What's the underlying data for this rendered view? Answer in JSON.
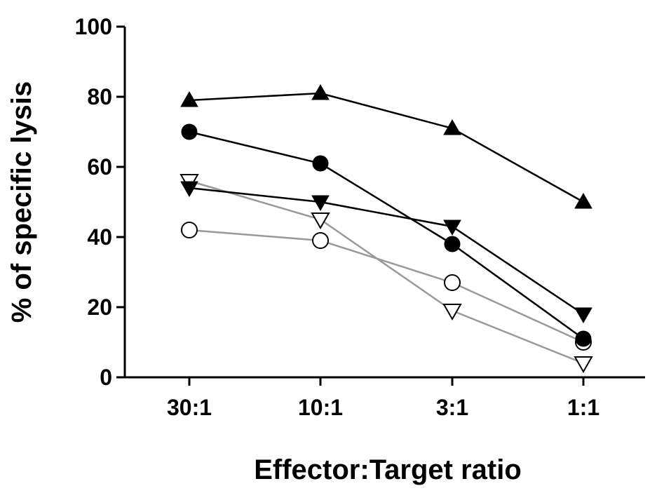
{
  "chart_data": {
    "type": "line",
    "title": "",
    "xlabel": "Effector:Target ratio",
    "ylabel": "% of specific lysis",
    "categories": [
      "30:1",
      "10:1",
      "3:1",
      "1:1"
    ],
    "ylim": [
      0,
      100
    ],
    "yticks": [
      0,
      20,
      40,
      60,
      80,
      100
    ],
    "grid": false,
    "legend": "none",
    "series": [
      {
        "marker": "triangle-up-filled",
        "color": "#000000",
        "values": [
          79,
          81,
          71,
          50
        ]
      },
      {
        "marker": "circle-filled",
        "color": "#000000",
        "values": [
          70,
          61,
          38,
          11
        ]
      },
      {
        "marker": "triangle-down-filled",
        "color": "#000000",
        "values": [
          54,
          50,
          43,
          18
        ]
      },
      {
        "marker": "triangle-down-open",
        "color": "#999999",
        "values": [
          56,
          45,
          19,
          4
        ]
      },
      {
        "marker": "circle-open",
        "color": "#999999",
        "values": [
          42,
          39,
          27,
          10
        ]
      }
    ]
  }
}
